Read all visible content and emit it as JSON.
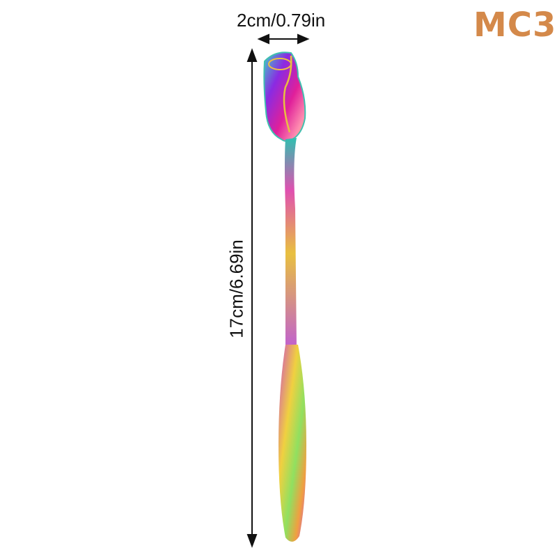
{
  "product": {
    "model_code": "MC3",
    "width_label": "2cm/0.79in",
    "length_label": "17cm/6.69in",
    "colors": {
      "model_code": "#D4894A",
      "dimension_lines": "#111111"
    }
  }
}
